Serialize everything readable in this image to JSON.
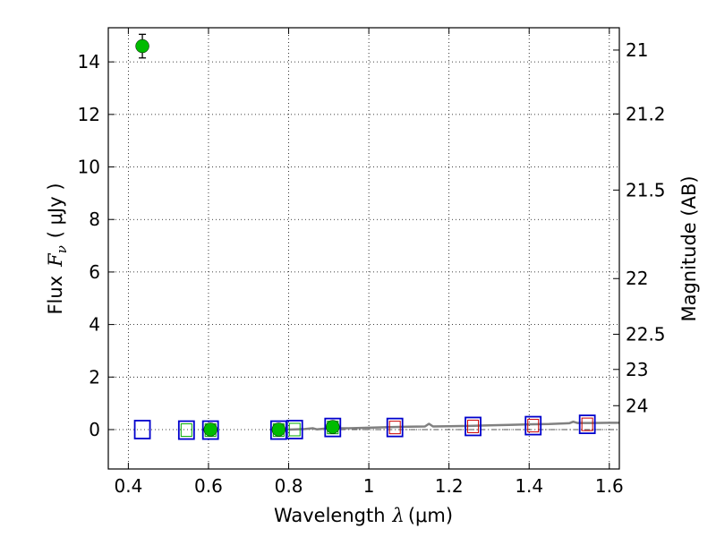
{
  "chart_data": {
    "type": "scatter",
    "xlabel": {
      "prefix": "Wavelength",
      "symbol": "λ",
      "unit": "(μm)"
    },
    "ylabel": {
      "prefix": "Flux",
      "symbol": "F",
      "subscript": "ν",
      "unit": "( μJy )"
    },
    "y2label": "Magnitude (AB)",
    "xlim": [
      0.35,
      1.625
    ],
    "ylim": [
      -1.5,
      15.3
    ],
    "grid": true,
    "x_ticks": [
      0.4,
      0.6,
      0.8,
      1.0,
      1.2,
      1.4,
      1.6
    ],
    "x_tick_labels": [
      "0.4",
      "0.6",
      "0.8",
      "1",
      "1.2",
      "1.4",
      "1.6"
    ],
    "y_ticks": [
      0,
      2,
      4,
      6,
      8,
      10,
      12,
      14
    ],
    "y_tick_labels": [
      "0",
      "2",
      "4",
      "6",
      "8",
      "10",
      "12",
      "14"
    ],
    "y2_ticks": [
      {
        "label": "21",
        "flux": 14.45
      },
      {
        "label": "21.2",
        "flux": 12.02
      },
      {
        "label": "21.5",
        "flux": 9.12
      },
      {
        "label": "22",
        "flux": 5.75
      },
      {
        "label": "22.5",
        "flux": 3.63
      },
      {
        "label": "23",
        "flux": 2.29
      },
      {
        "label": "24",
        "flux": 0.91
      }
    ],
    "colors": {
      "observed": "#00bb00",
      "model_box": "#0000cc",
      "model_inner": "#cc0000",
      "model_inner_green": "#00aa00",
      "sed_line": "#808080"
    },
    "observed": [
      {
        "x": 0.435,
        "y": 14.6,
        "err": 0.45
      },
      {
        "x": 0.605,
        "y": 0.0,
        "err": 0.05
      },
      {
        "x": 0.775,
        "y": 0.0,
        "err": 0.05
      },
      {
        "x": 0.91,
        "y": 0.1,
        "err": 0.05
      }
    ],
    "model_points": [
      {
        "x": 0.435,
        "y": 0.0,
        "inner": "none"
      },
      {
        "x": 0.545,
        "y": -0.02,
        "inner": "green"
      },
      {
        "x": 0.605,
        "y": -0.02,
        "inner": "green"
      },
      {
        "x": 0.775,
        "y": -0.02,
        "inner": "green"
      },
      {
        "x": 0.815,
        "y": 0.0,
        "inner": "green"
      },
      {
        "x": 0.91,
        "y": 0.08,
        "inner": "green"
      },
      {
        "x": 1.065,
        "y": 0.08,
        "inner": "red"
      },
      {
        "x": 1.26,
        "y": 0.12,
        "inner": "red"
      },
      {
        "x": 1.41,
        "y": 0.15,
        "inner": "red"
      },
      {
        "x": 1.545,
        "y": 0.2,
        "inner": "red"
      }
    ],
    "reference_line": {
      "y": 0.0,
      "x_start": 0.9,
      "x_end": 1.625
    },
    "sed_curve": [
      [
        0.8,
        0.0
      ],
      [
        0.84,
        0.02
      ],
      [
        0.86,
        0.05
      ],
      [
        0.87,
        0.01
      ],
      [
        0.9,
        0.05
      ],
      [
        0.95,
        0.05
      ],
      [
        1.0,
        0.07
      ],
      [
        1.05,
        0.09
      ],
      [
        1.1,
        0.11
      ],
      [
        1.14,
        0.12
      ],
      [
        1.15,
        0.22
      ],
      [
        1.16,
        0.12
      ],
      [
        1.2,
        0.13
      ],
      [
        1.25,
        0.14
      ],
      [
        1.3,
        0.16
      ],
      [
        1.35,
        0.18
      ],
      [
        1.4,
        0.2
      ],
      [
        1.45,
        0.21
      ],
      [
        1.5,
        0.24
      ],
      [
        1.51,
        0.3
      ],
      [
        1.52,
        0.25
      ],
      [
        1.56,
        0.25
      ],
      [
        1.6,
        0.26
      ],
      [
        1.625,
        0.26
      ]
    ]
  }
}
